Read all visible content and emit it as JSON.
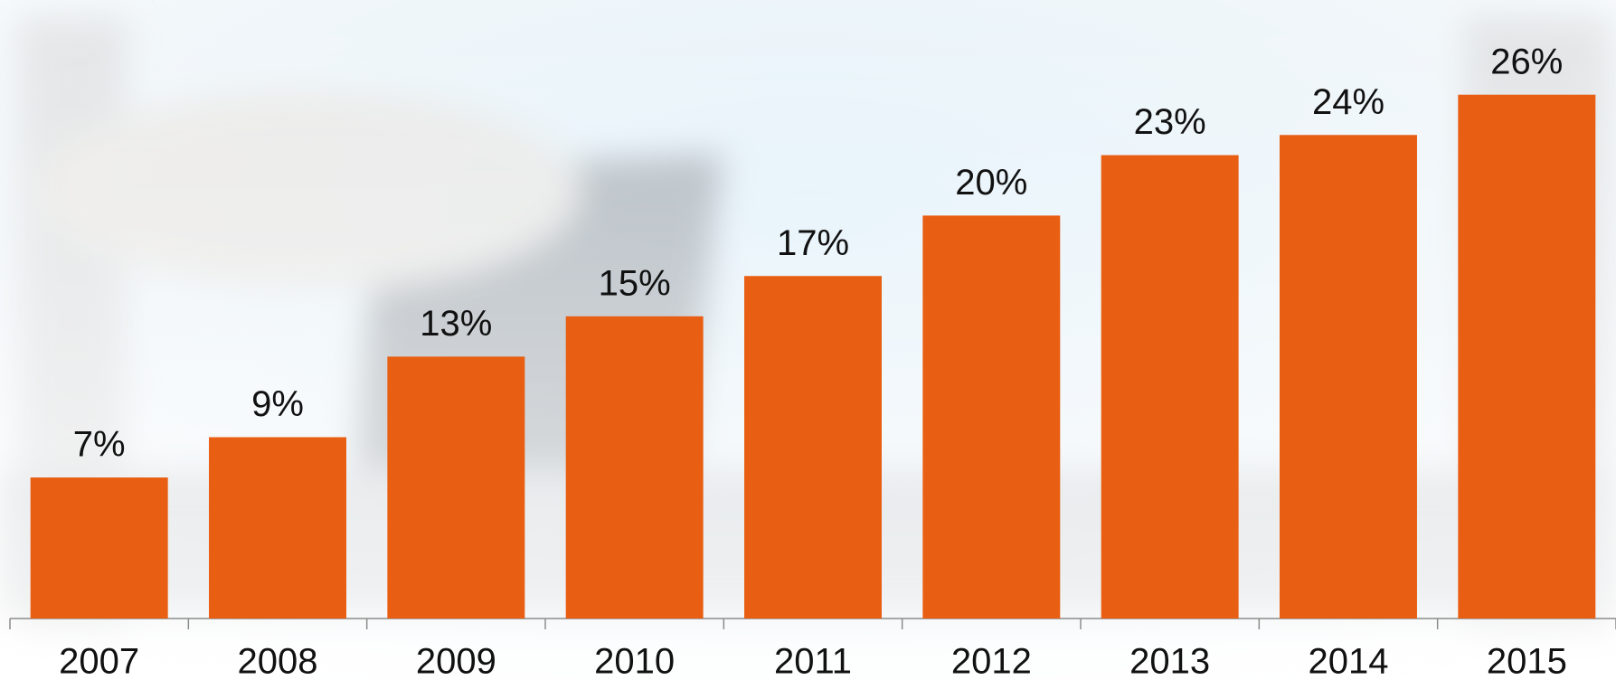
{
  "chart_data": {
    "type": "bar",
    "categories": [
      "2007",
      "2008",
      "2009",
      "2010",
      "2011",
      "2012",
      "2013",
      "2014",
      "2015"
    ],
    "values": [
      7,
      9,
      13,
      15,
      17,
      20,
      23,
      24,
      26
    ],
    "value_labels": [
      "7%",
      "9%",
      "13%",
      "15%",
      "17%",
      "20%",
      "23%",
      "24%",
      "26%"
    ],
    "color": "#e85e12",
    "ylim": [
      0,
      30.7
    ]
  }
}
